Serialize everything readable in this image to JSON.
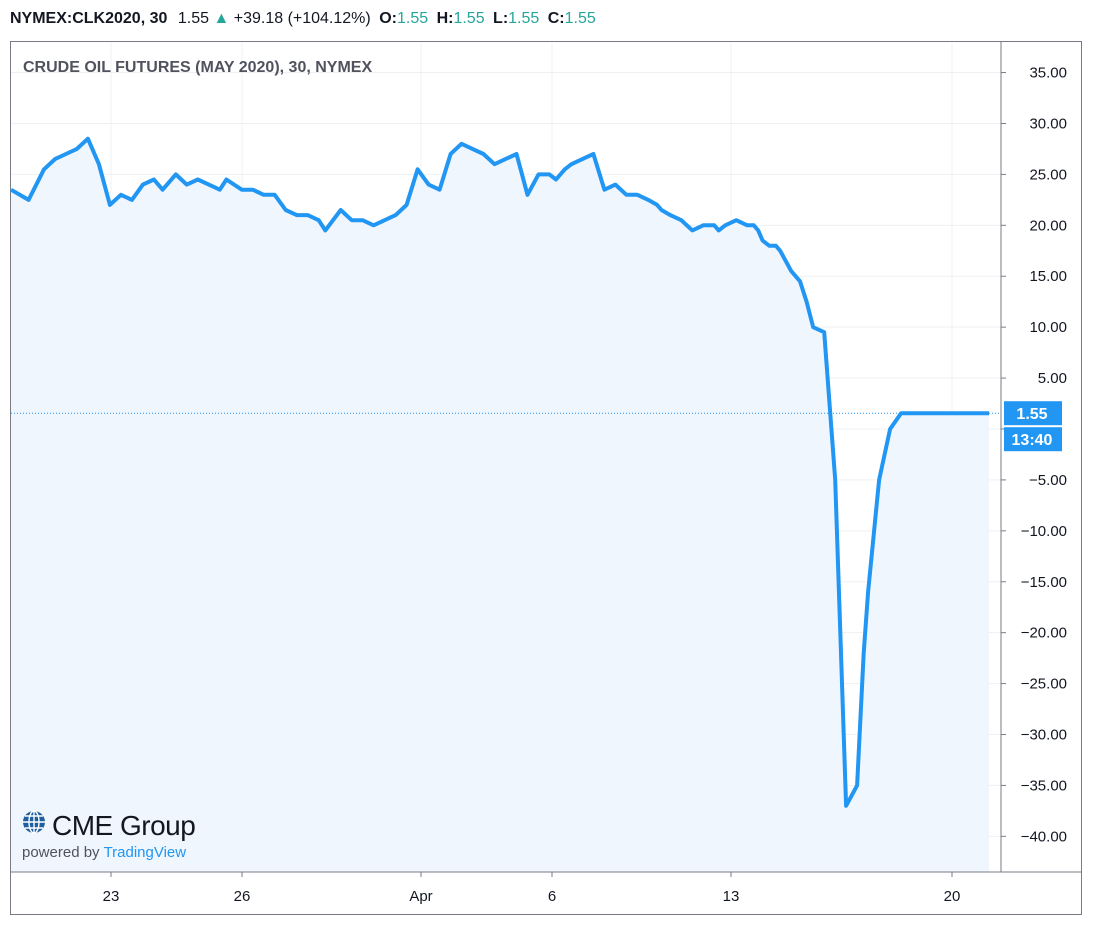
{
  "header": {
    "symbol": "NYMEX:CLK2020, 30",
    "last": "1.55",
    "arrow": "▲",
    "change": "+39.18 (+104.12%)",
    "o_label": "O:",
    "o_value": "1.55",
    "h_label": "H:",
    "h_value": "1.55",
    "l_label": "L:",
    "l_value": "1.55",
    "c_label": "C:",
    "c_value": "1.55"
  },
  "branding": {
    "logo": "CME Group",
    "powered_by": "powered by",
    "tradingview": "TradingView"
  },
  "colors": {
    "line": "#2196f3",
    "fill": "#f0f6fd",
    "up": "#26a69a",
    "label_bg": "#2196f3"
  },
  "chart_data": {
    "type": "area",
    "title": "CRUDE OIL FUTURES (MAY 2020), 30, NYMEX",
    "x_tick_labels": [
      "23",
      "26",
      "Apr",
      "6",
      "13",
      "20"
    ],
    "y_ticks": [
      35,
      30,
      25,
      20,
      15,
      10,
      5,
      0,
      -5,
      -10,
      -15,
      -20,
      -25,
      -30,
      -35,
      -40
    ],
    "y_tick_labels": [
      "35.00",
      "30.00",
      "25.00",
      "20.00",
      "15.00",
      "10.00",
      "5.00",
      "",
      "−5.00",
      "−10.00",
      "−15.00",
      "−20.00",
      "−25.00",
      "−30.00",
      "−35.00",
      "−40.00"
    ],
    "ylim": [
      -43.5,
      38
    ],
    "last_price_label": "1.55",
    "last_price_value": 1.55,
    "countdown_label": "13:40",
    "grid": true,
    "series": [
      {
        "x": [
          0,
          0.8,
          1.5,
          2,
          2.5,
          3,
          3.5,
          4,
          4.5,
          5,
          5.5,
          6,
          6.5,
          6.9,
          7.5,
          8,
          8.5,
          9,
          9.5,
          9.8,
          10.5,
          11,
          11.5,
          12,
          12.5,
          13,
          13.5,
          14,
          14.3,
          15,
          15.5,
          16,
          16.5,
          17,
          17.5,
          18,
          18.5,
          19,
          19.5,
          20,
          20.5,
          21,
          21.5,
          22,
          22.5,
          23,
          23.5,
          24,
          24.5,
          24.8,
          25.2,
          25.5,
          26,
          26.5,
          27,
          27.5,
          28,
          28.5,
          29,
          29.4,
          29.6,
          30,
          30.5,
          31,
          31.5,
          32,
          32.2,
          32.5,
          33,
          33.5,
          33.8,
          34,
          34.2,
          34.5,
          34.8,
          35,
          35.5,
          35.9,
          36.2,
          36.5,
          37,
          37.5,
          38,
          38.5,
          38.8,
          39,
          39.5,
          40,
          40.5,
          40.9,
          41,
          41.3,
          41.5,
          41.8,
          42,
          42.3,
          42.6,
          43,
          43.2,
          43.5,
          43.7,
          43.9,
          44,
          44.2,
          44.5
        ],
        "values": [
          23.5,
          22.5,
          25.5,
          26.5,
          27,
          27.5,
          28.5,
          26,
          22,
          23,
          22.5,
          24,
          24.5,
          23.5,
          25,
          24,
          24.5,
          24,
          23.5,
          24.5,
          23.5,
          23.5,
          23,
          23,
          21.5,
          21,
          21,
          20.5,
          19.5,
          21.5,
          20.5,
          20.5,
          20,
          20.5,
          21,
          22,
          25.5,
          24,
          23.5,
          27,
          28,
          27.5,
          27,
          26,
          26.5,
          27,
          23,
          25,
          25,
          24.5,
          25.5,
          26,
          26.5,
          27,
          23.5,
          24,
          23,
          23,
          22.5,
          22,
          21.5,
          21,
          20.5,
          19.5,
          20,
          20,
          19.5,
          20,
          20.5,
          20,
          20,
          19.5,
          18.5,
          18,
          18,
          17.5,
          15.5,
          14.5,
          12.5,
          10,
          9.5,
          -5,
          -37,
          -35,
          -22,
          -16,
          -5,
          0,
          1.55,
          1.55,
          1.55,
          1.55,
          1.55,
          1.55,
          1.55,
          1.55,
          1.55,
          1.55,
          1.55,
          1.55,
          1.55,
          1.55,
          1.55,
          1.55,
          1.55
        ]
      }
    ]
  }
}
